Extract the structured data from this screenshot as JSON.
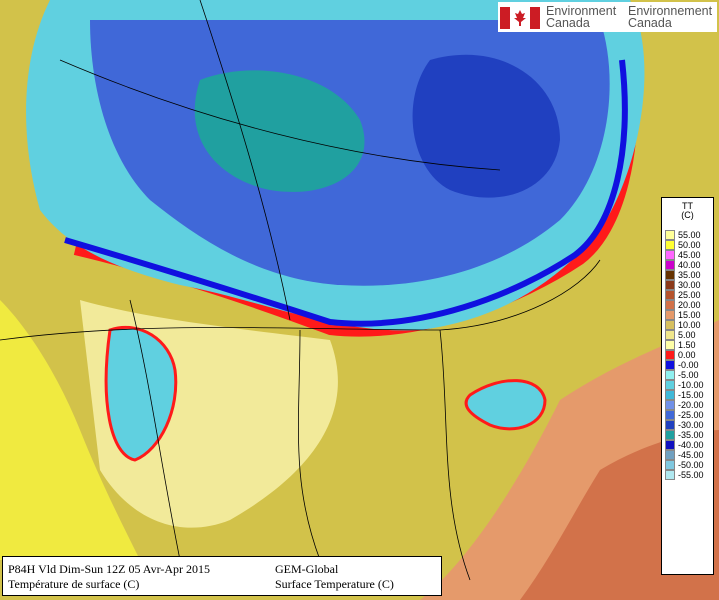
{
  "logo": {
    "name": "environment-canada-logo",
    "en_line1": "Environment",
    "en_line2": "Canada",
    "fr_line1": "Environnement",
    "fr_line2": "Canada",
    "flag_red": "#cc1c24"
  },
  "caption": {
    "valid_time": "P84H Vld Dim-Sun 12Z 05 Avr-Apr 2015",
    "model": "GEM-Global",
    "field_fr": "Température de surface (C)",
    "field_en": "Surface Temperature (C)"
  },
  "legend": {
    "variable": "TT",
    "unit": "(C)",
    "entries": [
      {
        "label": "55.00",
        "color": "#ffff99"
      },
      {
        "label": "50.00",
        "color": "#ffff33"
      },
      {
        "label": "45.00",
        "color": "#ff66ff"
      },
      {
        "label": "40.00",
        "color": "#cc00cc"
      },
      {
        "label": "35.00",
        "color": "#663300"
      },
      {
        "label": "30.00",
        "color": "#8b3a1a"
      },
      {
        "label": "25.00",
        "color": "#b5532c"
      },
      {
        "label": "20.00",
        "color": "#d2724a"
      },
      {
        "label": "15.00",
        "color": "#e59a6b"
      },
      {
        "label": "10.00",
        "color": "#d7c060"
      },
      {
        "label": "5.00",
        "color": "#f0e68c"
      },
      {
        "label": "1.50",
        "color": "#ffffa8"
      },
      {
        "label": "0.00",
        "color": "#ff1a1a"
      },
      {
        "label": "-0.00",
        "color": "#1010e0"
      },
      {
        "label": "-5.00",
        "color": "#90f0f0"
      },
      {
        "label": "-10.00",
        "color": "#60d0e0"
      },
      {
        "label": "-15.00",
        "color": "#40b8d8"
      },
      {
        "label": "-20.00",
        "color": "#7090e8"
      },
      {
        "label": "-25.00",
        "color": "#4068d8"
      },
      {
        "label": "-30.00",
        "color": "#2040c0"
      },
      {
        "label": "-35.00",
        "color": "#20a0a0"
      },
      {
        "label": "-40.00",
        "color": "#1010c0"
      },
      {
        "label": "-45.00",
        "color": "#70a0c0"
      },
      {
        "label": "-50.00",
        "color": "#80c8e0"
      },
      {
        "label": "-55.00",
        "color": "#b0e8f0"
      }
    ]
  }
}
